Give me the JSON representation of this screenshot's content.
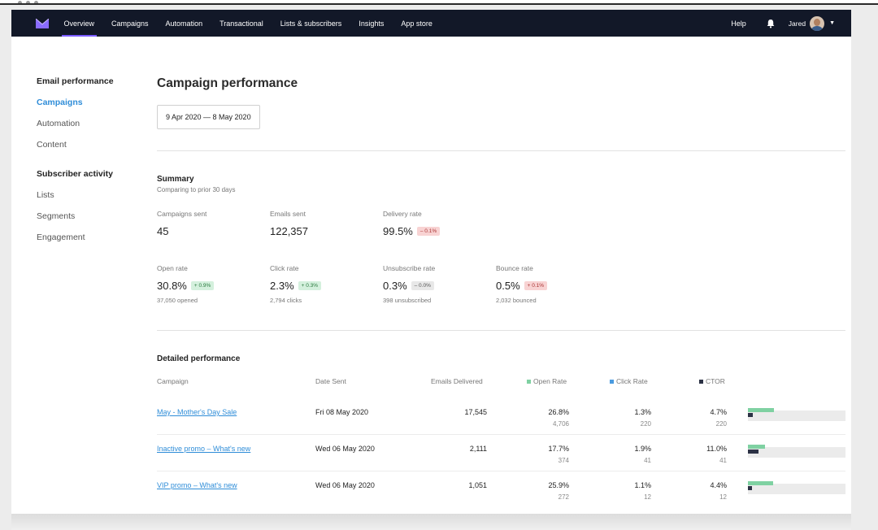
{
  "nav": {
    "links": [
      "Overview",
      "Campaigns",
      "Automation",
      "Transactional",
      "Lists & subscribers",
      "Insights",
      "App store"
    ],
    "help": "Help",
    "user": "Jared",
    "accent": "#7b5cff",
    "bg": "#121828"
  },
  "sidebar": {
    "section1": "Email performance",
    "section1_items": [
      "Campaigns",
      "Automation",
      "Content"
    ],
    "section2": "Subscriber activity",
    "section2_items": [
      "Lists",
      "Segments",
      "Engagement"
    ]
  },
  "page": {
    "title": "Campaign performance",
    "date_range": "9 Apr 2020 — 8 May 2020"
  },
  "summary": {
    "title": "Summary",
    "subtitle": "Comparing to prior 30 days",
    "metrics": [
      {
        "label": "Campaigns sent",
        "value": "45",
        "delta": "",
        "sub": ""
      },
      {
        "label": "Emails sent",
        "value": "122,357",
        "delta": "",
        "sub": ""
      },
      {
        "label": "Delivery rate",
        "value": "99.5%",
        "delta": "– 0.1%",
        "delta_type": "red",
        "sub": ""
      },
      {
        "label": "Open rate",
        "value": "30.8%",
        "delta": "+ 0.9%",
        "delta_type": "green",
        "sub": "37,050 opened"
      },
      {
        "label": "Click rate",
        "value": "2.3%",
        "delta": "+ 0.3%",
        "delta_type": "green",
        "sub": "2,794 clicks"
      },
      {
        "label": "Unsubscribe rate",
        "value": "0.3%",
        "delta": "– 0.0%",
        "delta_type": "grey",
        "sub": "398 unsubscribed"
      },
      {
        "label": "Bounce rate",
        "value": "0.5%",
        "delta": "+ 0.1%",
        "delta_type": "red",
        "sub": "2,032 bounced"
      }
    ]
  },
  "detailed": {
    "title": "Detailed performance",
    "headers": {
      "campaign": "Campaign",
      "date_sent": "Date Sent",
      "delivered": "Emails Delivered",
      "open_rate": "Open Rate",
      "click_rate": "Click Rate",
      "ctor": "CTOR"
    },
    "legend_colors": {
      "open": "#7fd1a2",
      "click": "#4a9be0",
      "ctor": "#2c3245"
    },
    "rows": [
      {
        "campaign": "May - Mother's Day Sale",
        "date": "Fri 08 May 2020",
        "delivered": "17,545",
        "open": "26.8%",
        "open_n": "4,706",
        "click": "1.3%",
        "click_n": "220",
        "ctor": "4.7%",
        "ctor_n": "220",
        "open_frac": 0.268,
        "ctor_frac": 0.047
      },
      {
        "campaign": "Inactive promo – What's new",
        "date": "Wed 06 May 2020",
        "delivered": "2,111",
        "open": "17.7%",
        "open_n": "374",
        "click": "1.9%",
        "click_n": "41",
        "ctor": "11.0%",
        "ctor_n": "41",
        "open_frac": 0.177,
        "ctor_frac": 0.11
      },
      {
        "campaign": "VIP promo – What's new",
        "date": "Wed 06 May 2020",
        "delivered": "1,051",
        "open": "25.9%",
        "open_n": "272",
        "click": "1.1%",
        "click_n": "12",
        "ctor": "4.4%",
        "ctor_n": "12",
        "open_frac": 0.259,
        "ctor_frac": 0.044
      }
    ]
  }
}
